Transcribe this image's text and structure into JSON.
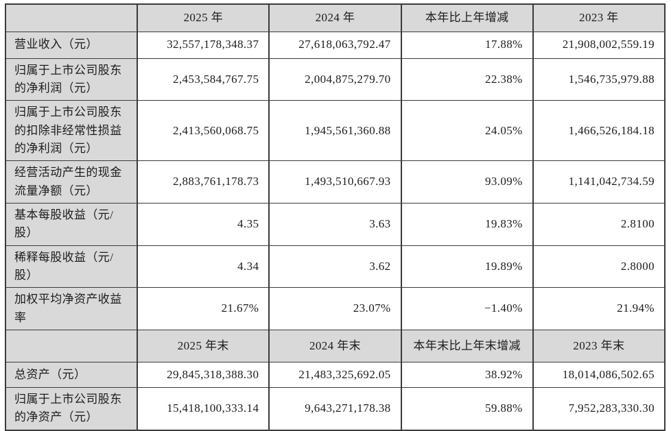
{
  "colors": {
    "header_and_label_bg": "#d9d9d9",
    "border": "#3a3a3a",
    "cell_bg": "#ffffff",
    "text": "#1c1c1c"
  },
  "table": {
    "section1": {
      "headers": [
        "",
        "2025 年",
        "2024 年",
        "本年比上年增减",
        "2023 年"
      ],
      "rows": [
        {
          "label": "营业收入（元）",
          "values": [
            "32,557,178,348.37",
            "27,618,063,792.47",
            "17.88%",
            "21,908,002,559.19"
          ]
        },
        {
          "label": "归属于上市公司股东的净利润（元）",
          "values": [
            "2,453,584,767.75",
            "2,004,875,279.70",
            "22.38%",
            "1,546,735,979.88"
          ]
        },
        {
          "label": "归属于上市公司股东的扣除非经常性损益的净利润（元）",
          "values": [
            "2,413,560,068.75",
            "1,945,561,360.88",
            "24.05%",
            "1,466,526,184.18"
          ]
        },
        {
          "label": "经营活动产生的现金流量净额（元）",
          "values": [
            "2,883,761,178.73",
            "1,493,510,667.93",
            "93.09%",
            "1,141,042,734.59"
          ]
        },
        {
          "label": "基本每股收益（元/股）",
          "values": [
            "4.35",
            "3.63",
            "19.83%",
            "2.8100"
          ]
        },
        {
          "label": "稀释每股收益（元/股）",
          "values": [
            "4.34",
            "3.62",
            "19.89%",
            "2.8000"
          ]
        },
        {
          "label": "加权平均净资产收益率",
          "values": [
            "21.67%",
            "23.07%",
            "−1.40%",
            "21.94%"
          ]
        }
      ]
    },
    "section2": {
      "headers": [
        "",
        "2025 年末",
        "2024 年末",
        "本年末比上年末增减",
        "2023 年末"
      ],
      "rows": [
        {
          "label": "总资产（元）",
          "values": [
            "29,845,318,388.30",
            "21,483,325,692.05",
            "38.92%",
            "18,014,086,502.65"
          ]
        },
        {
          "label": "归属于上市公司股东的净资产（元）",
          "values": [
            "15,418,100,333.14",
            "9,643,271,178.38",
            "59.88%",
            "7,952,283,330.30"
          ]
        }
      ]
    }
  }
}
